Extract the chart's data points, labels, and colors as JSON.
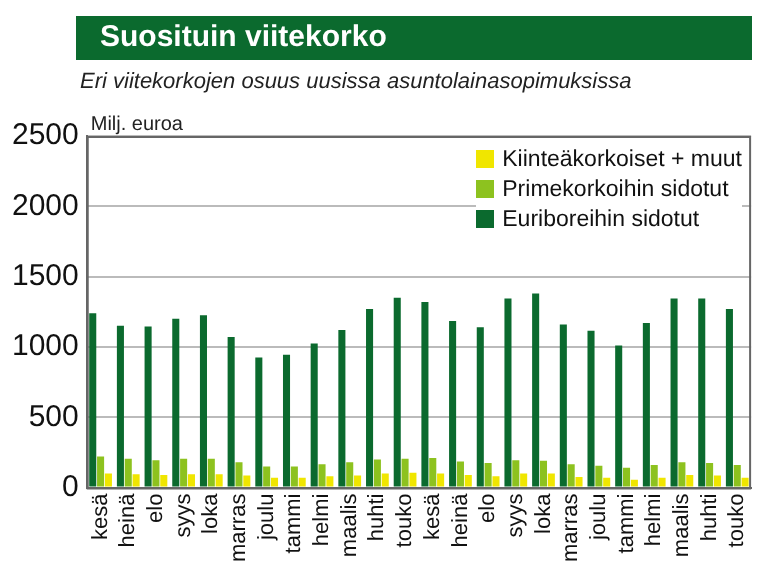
{
  "chart_data": {
    "type": "bar",
    "title": "Suosituin viitekorko",
    "subtitle": "Eri viitekorkojen osuus uusissa asuntolainasopimuksissa",
    "ylabel": "Milj. euroa",
    "categories": [
      "kesä",
      "heinä",
      "elo",
      "syys",
      "loka",
      "marras",
      "joulu",
      "tammi",
      "helmi",
      "maalis",
      "huhti",
      "touko",
      "kesä",
      "heinä",
      "elo",
      "syys",
      "loka",
      "marras",
      "joulu",
      "tammi",
      "helmi",
      "maalis",
      "huhti",
      "touko"
    ],
    "series": [
      {
        "name": "Euriboreihin sidotut",
        "color": "#0b6a2e",
        "values": [
          1240,
          1150,
          1145,
          1200,
          1225,
          1070,
          925,
          945,
          1025,
          1120,
          1270,
          1350,
          1320,
          1185,
          1140,
          1345,
          1380,
          1160,
          1115,
          1010,
          1170,
          1345,
          1345,
          1270
        ]
      },
      {
        "name": "Primekorkoihin sidotut",
        "color": "#8dc21f",
        "values": [
          220,
          205,
          195,
          205,
          205,
          180,
          150,
          150,
          165,
          180,
          200,
          205,
          210,
          185,
          175,
          195,
          190,
          165,
          155,
          140,
          160,
          180,
          175,
          160
        ]
      },
      {
        "name": "Kiinteäkorkoiset + muut",
        "color": "#f0e600",
        "values": [
          100,
          95,
          90,
          95,
          95,
          85,
          70,
          70,
          80,
          85,
          100,
          105,
          100,
          90,
          80,
          100,
          100,
          75,
          70,
          55,
          70,
          90,
          85,
          70
        ]
      }
    ],
    "ylim": [
      0,
      2500
    ],
    "yticks": [
      0,
      500,
      1000,
      1500,
      2000,
      2500
    ],
    "grid": "y",
    "legend": "top right"
  }
}
